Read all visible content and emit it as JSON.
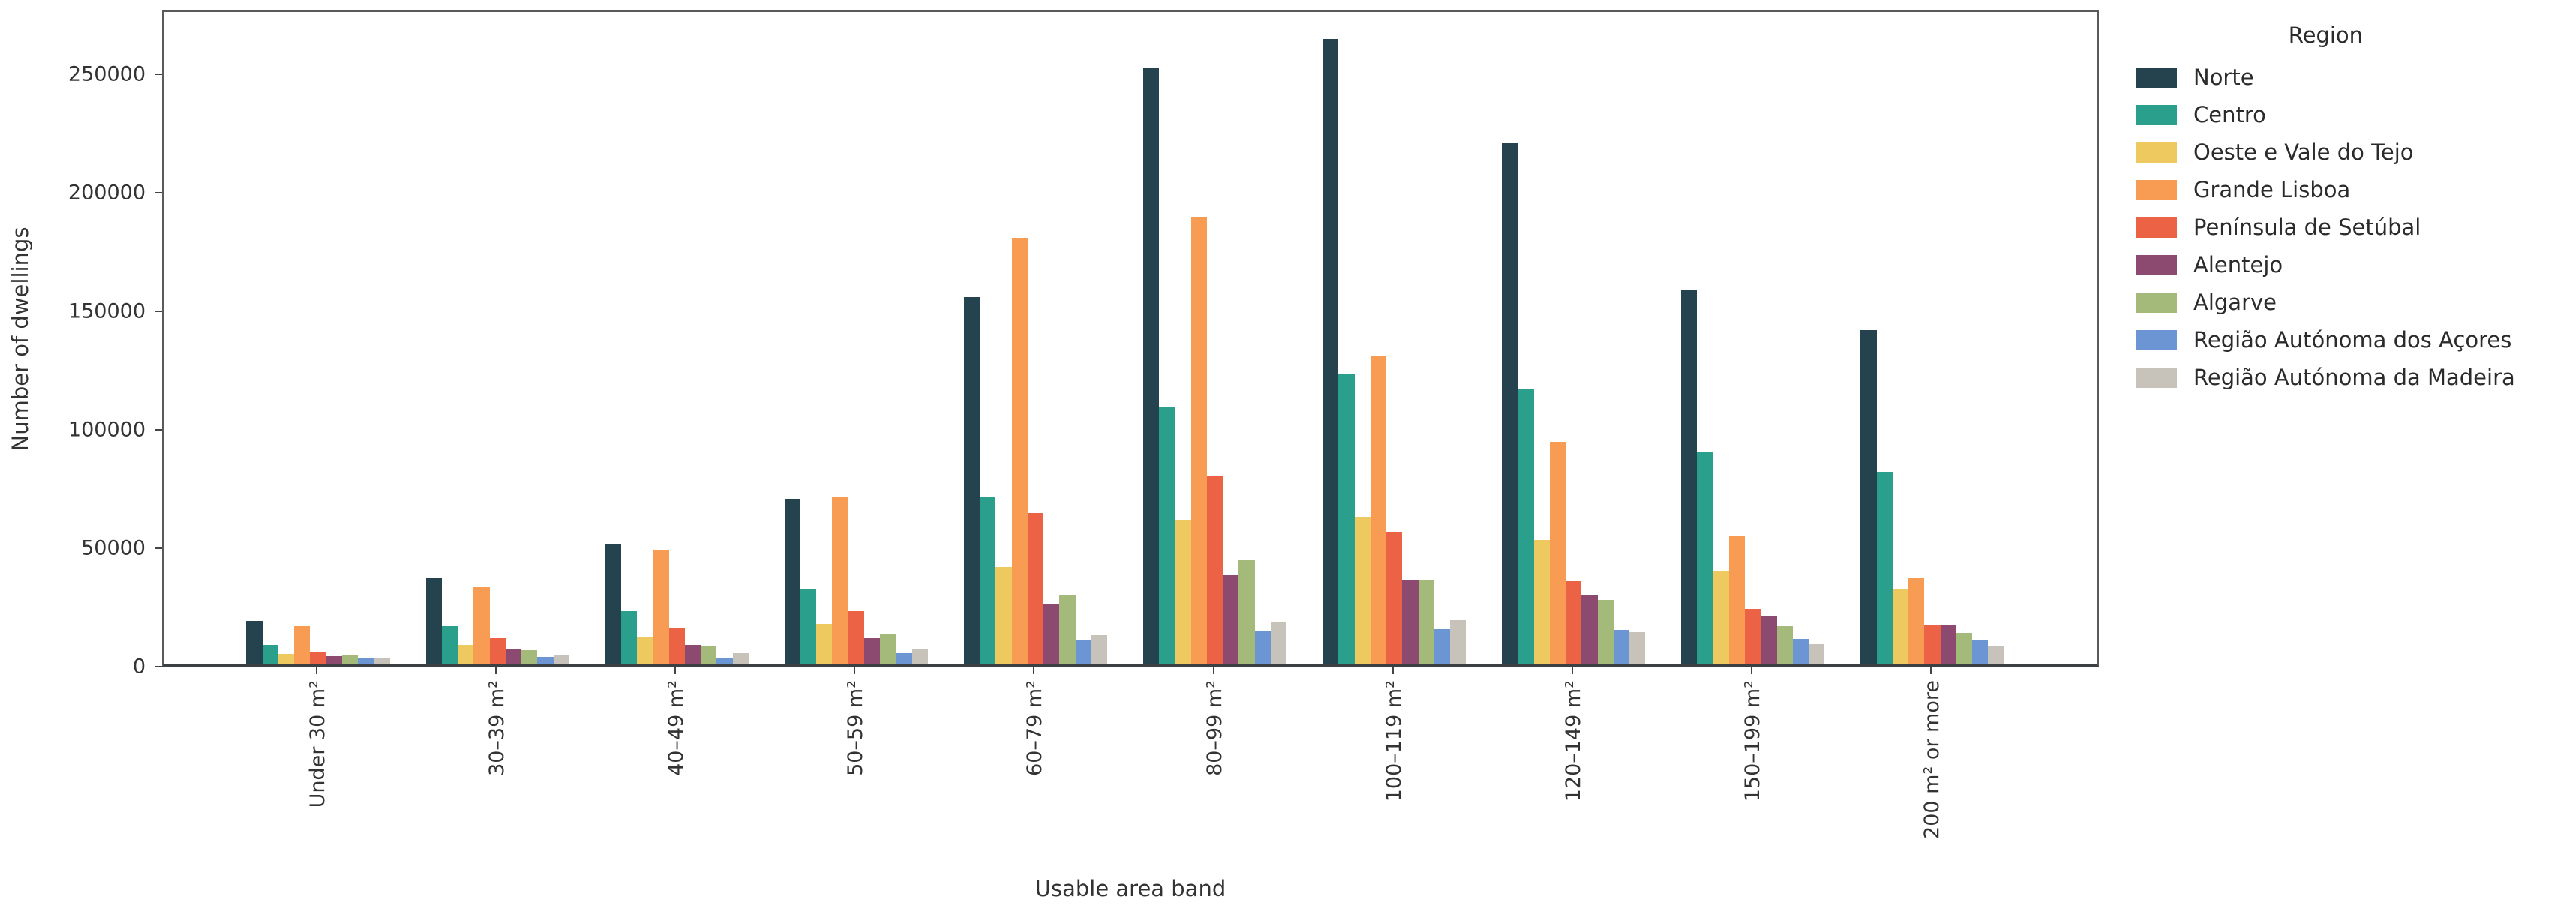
{
  "figure": {
    "background": "#ffffff"
  },
  "chart_data": {
    "type": "bar",
    "title": "",
    "xlabel": "Usable area band",
    "ylabel": "Number of dwellings",
    "legend_title": "Region",
    "legend_position": "right",
    "grid": false,
    "ylim": [
      0,
      276900
    ],
    "yticks": [
      0,
      50000,
      100000,
      150000,
      200000,
      250000
    ],
    "categories": [
      "Under 30 m²",
      "30–39 m²",
      "40–49 m²",
      "50–59 m²",
      "60–79 m²",
      "80–99 m²",
      "100–119 m²",
      "120–149 m²",
      "150–199 m²",
      "200 m² or more"
    ],
    "series": [
      {
        "name": "Norte",
        "color": "#25424f",
        "values": [
          18500,
          36500,
          51000,
          70000,
          155000,
          252000,
          264000,
          220000,
          158000,
          141000
        ]
      },
      {
        "name": "Centro",
        "color": "#2aa08c",
        "values": [
          8300,
          16200,
          22600,
          31500,
          70500,
          109000,
          122500,
          116500,
          90000,
          81000
        ]
      },
      {
        "name": "Oeste e Vale do Tejo",
        "color": "#edc95f",
        "values": [
          4400,
          8100,
          11400,
          17100,
          41000,
          61000,
          62000,
          52500,
          39500,
          32000
        ]
      },
      {
        "name": "Grande Lisboa",
        "color": "#f79c52",
        "values": [
          16200,
          32600,
          48300,
          70700,
          180000,
          189000,
          130000,
          94000,
          54000,
          36400
        ]
      },
      {
        "name": "Península de Setúbal",
        "color": "#ec6245",
        "values": [
          5400,
          11200,
          15200,
          22600,
          64000,
          79500,
          55700,
          35100,
          23400,
          16400
        ]
      },
      {
        "name": "Alentejo",
        "color": "#8d4a70",
        "values": [
          3400,
          6400,
          8200,
          11100,
          25300,
          37700,
          35400,
          29100,
          20300,
          16400
        ]
      },
      {
        "name": "Algarve",
        "color": "#a4ba7b",
        "values": [
          4100,
          6000,
          7600,
          12700,
          29400,
          44000,
          35800,
          27200,
          16100,
          13300
        ]
      },
      {
        "name": "Região Autónoma dos Açores",
        "color": "#6c95d4",
        "values": [
          2600,
          3100,
          2700,
          4600,
          10400,
          13900,
          15000,
          14700,
          10800,
          10400
        ]
      },
      {
        "name": "Região Autónoma da Madeira",
        "color": "#c7c3ba",
        "values": [
          2500,
          3700,
          4600,
          6500,
          12300,
          18000,
          18700,
          13600,
          8500,
          7900
        ]
      }
    ]
  }
}
